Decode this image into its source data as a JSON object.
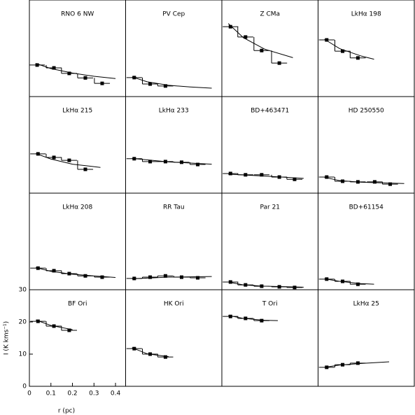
{
  "chart_data": [
    {
      "type": "line",
      "title": "RNO 6 NW",
      "xlim": [
        0,
        0.447
      ],
      "ylim": [
        0,
        30
      ],
      "points": {
        "x": [
          0.036,
          0.114,
          0.185,
          0.26,
          0.338
        ],
        "values": [
          9.8,
          8.9,
          7.2,
          5.8,
          4.1
        ]
      },
      "fit": {
        "x": [
          0.03,
          0.1,
          0.2,
          0.3,
          0.4
        ],
        "values": [
          10.3,
          8.7,
          7.3,
          6.3,
          5.6
        ]
      }
    },
    {
      "type": "line",
      "title": "PV Cep",
      "xlim": [
        0,
        0.447
      ],
      "ylim": [
        0,
        30
      ],
      "points": {
        "x": [
          0.04,
          0.114,
          0.185
        ],
        "values": [
          5.9,
          3.9,
          3.3
        ]
      },
      "fit": {
        "x": [
          0.03,
          0.1,
          0.2,
          0.3,
          0.4
        ],
        "values": [
          6.1,
          4.6,
          3.5,
          3.0,
          2.6
        ]
      }
    },
    {
      "type": "line",
      "title": "Z CMa",
      "xlim": [
        0,
        0.447
      ],
      "ylim": [
        0,
        30
      ],
      "points": {
        "x": [
          0.04,
          0.11,
          0.185,
          0.267
        ],
        "values": [
          21.7,
          18.5,
          14.3,
          10.4
        ]
      },
      "fit": {
        "x": [
          0.03,
          0.1,
          0.2,
          0.33
        ],
        "values": [
          22.7,
          18.3,
          14.7,
          12.1
        ]
      }
    },
    {
      "type": "line",
      "title": "LkHα 198",
      "xlim": [
        0,
        0.447
      ],
      "ylim": [
        0,
        30
      ],
      "points": {
        "x": [
          0.04,
          0.114,
          0.185
        ],
        "values": [
          17.6,
          14.1,
          12.0
        ]
      },
      "fit": {
        "x": [
          0.03,
          0.1,
          0.2,
          0.26
        ],
        "values": [
          17.8,
          14.9,
          12.6,
          11.6
        ]
      }
    },
    {
      "type": "line",
      "title": "LkHα 215",
      "xlim": [
        0,
        0.447
      ],
      "ylim": [
        0,
        30
      ],
      "points": {
        "x": [
          0.04,
          0.114,
          0.185,
          0.26
        ],
        "values": [
          12.2,
          11.1,
          10.2,
          7.4
        ]
      },
      "fit": {
        "x": [
          0.03,
          0.1,
          0.2,
          0.33
        ],
        "values": [
          12.3,
          10.6,
          9.0,
          8.0
        ]
      }
    },
    {
      "type": "line",
      "title": "LkHα 233",
      "xlim": [
        0,
        0.447
      ],
      "ylim": [
        0,
        30
      ],
      "points": {
        "x": [
          0.04,
          0.114,
          0.185,
          0.26,
          0.335
        ],
        "values": [
          10.7,
          9.8,
          9.8,
          9.6,
          8.9
        ]
      },
      "fit": {
        "x": [
          0.03,
          0.2,
          0.4
        ],
        "values": [
          10.8,
          9.7,
          9.0
        ]
      }
    },
    {
      "type": "line",
      "title": "BD+463471",
      "xlim": [
        0,
        0.447
      ],
      "ylim": [
        0,
        30
      ],
      "points": {
        "x": [
          0.04,
          0.11,
          0.185,
          0.267,
          0.338
        ],
        "values": [
          6.1,
          5.7,
          5.7,
          5.0,
          4.3
        ]
      },
      "fit": {
        "x": [
          0.03,
          0.2,
          0.38
        ],
        "values": [
          5.9,
          5.3,
          4.6
        ]
      }
    },
    {
      "type": "line",
      "title": "HD 250550",
      "xlim": [
        0,
        0.447
      ],
      "ylim": [
        0,
        30
      ],
      "points": {
        "x": [
          0.04,
          0.114,
          0.185,
          0.263,
          0.335
        ],
        "values": [
          5.0,
          3.7,
          3.5,
          3.5,
          2.8
        ]
      },
      "fit": {
        "x": [
          0.03,
          0.1,
          0.2,
          0.4
        ],
        "values": [
          4.9,
          3.9,
          3.4,
          3.0
        ]
      }
    },
    {
      "type": "line",
      "title": "LkHα 208",
      "xlim": [
        0,
        0.447
      ],
      "ylim": [
        0,
        30
      ],
      "points": {
        "x": [
          0.04,
          0.114,
          0.185,
          0.26,
          0.338
        ],
        "values": [
          6.7,
          5.9,
          5.0,
          4.3,
          3.9
        ]
      },
      "fit": {
        "x": [
          0.03,
          0.1,
          0.2,
          0.3,
          0.4
        ],
        "values": [
          6.9,
          5.7,
          4.8,
          4.3,
          3.8
        ]
      }
    },
    {
      "type": "line",
      "title": "RR Tau",
      "xlim": [
        0,
        0.447
      ],
      "ylim": [
        0,
        30
      ],
      "points": {
        "x": [
          0.04,
          0.114,
          0.185,
          0.26,
          0.335
        ],
        "values": [
          3.5,
          3.9,
          4.3,
          3.9,
          3.7
        ]
      },
      "fit": {
        "x": [
          0.03,
          0.2,
          0.4
        ],
        "values": [
          3.4,
          3.9,
          4.1
        ]
      }
    },
    {
      "type": "line",
      "title": "Par 21",
      "xlim": [
        0,
        0.447
      ],
      "ylim": [
        0,
        30
      ],
      "points": {
        "x": [
          0.04,
          0.11,
          0.185,
          0.267,
          0.338
        ],
        "values": [
          2.4,
          1.5,
          1.1,
          0.9,
          0.7
        ]
      },
      "fit": {
        "x": [
          0.03,
          0.1,
          0.2,
          0.38
        ],
        "values": [
          2.4,
          1.5,
          1.1,
          0.8
        ]
      }
    },
    {
      "type": "line",
      "title": "BD+61154",
      "xlim": [
        0,
        0.447
      ],
      "ylim": [
        0,
        30
      ],
      "points": {
        "x": [
          0.04,
          0.114,
          0.185
        ],
        "values": [
          3.3,
          2.6,
          1.7
        ]
      },
      "fit": {
        "x": [
          0.03,
          0.1,
          0.2,
          0.26
        ],
        "values": [
          3.4,
          2.6,
          1.9,
          1.7
        ]
      }
    },
    {
      "type": "line",
      "title": "BF Ori",
      "xlim": [
        0,
        0.447
      ],
      "ylim": [
        0,
        30
      ],
      "xticks": [
        0,
        0.1,
        0.2,
        0.3,
        0.4
      ],
      "yticks": [
        0,
        10,
        20,
        30
      ],
      "xlabel": "r (pc)",
      "ylabel": "I (K kms⁻¹)",
      "points": {
        "x": [
          0.04,
          0.114,
          0.185
        ],
        "values": [
          20.2,
          18.7,
          17.4
        ]
      },
      "fit": {
        "x": [
          0.03,
          0.1,
          0.2
        ],
        "values": [
          20.6,
          18.9,
          17.6
        ]
      }
    },
    {
      "type": "line",
      "title": "HK Ori",
      "xlim": [
        0,
        0.447
      ],
      "ylim": [
        0,
        30
      ],
      "points": {
        "x": [
          0.04,
          0.114,
          0.185
        ],
        "values": [
          11.7,
          10.0,
          9.1
        ]
      },
      "fit": {
        "x": [
          0.03,
          0.1,
          0.2
        ],
        "values": [
          12.0,
          10.1,
          9.2
        ]
      }
    },
    {
      "type": "line",
      "title": "T Ori",
      "xlim": [
        0,
        0.447
      ],
      "ylim": [
        0,
        30
      ],
      "points": {
        "x": [
          0.04,
          0.11,
          0.185
        ],
        "values": [
          21.7,
          21.1,
          20.4
        ]
      },
      "fit": {
        "x": [
          0.03,
          0.1,
          0.2,
          0.26
        ],
        "values": [
          22.0,
          21.1,
          20.5,
          20.4
        ]
      }
    },
    {
      "type": "line",
      "title": "LkHα 25",
      "xlim": [
        0,
        0.447
      ],
      "ylim": [
        0,
        30
      ],
      "points": {
        "x": [
          0.04,
          0.114,
          0.185
        ],
        "values": [
          5.9,
          6.7,
          7.2
        ]
      },
      "fit": {
        "x": [
          0.03,
          0.1,
          0.2,
          0.33
        ],
        "values": [
          5.9,
          6.6,
          7.1,
          7.6
        ]
      }
    }
  ]
}
